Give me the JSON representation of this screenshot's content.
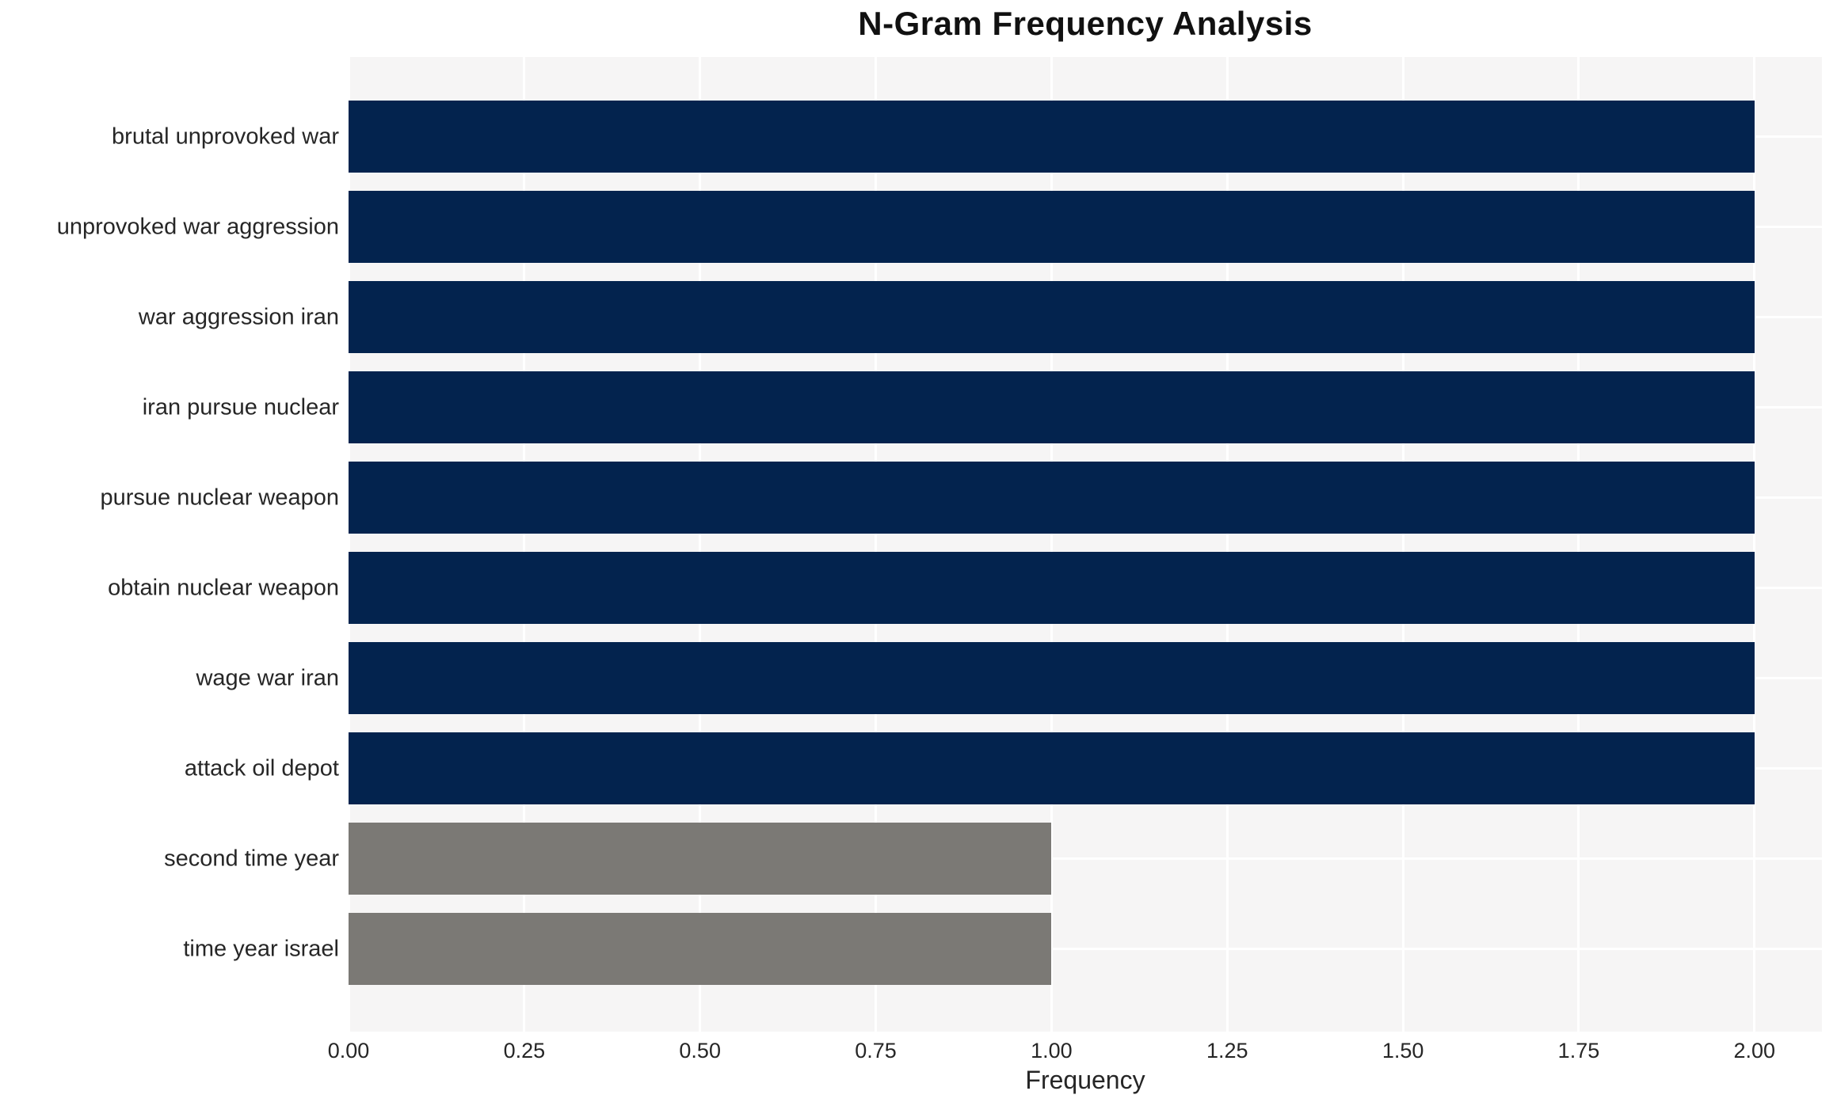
{
  "chart_data": {
    "type": "bar",
    "orientation": "horizontal",
    "title": "N-Gram Frequency Analysis",
    "xlabel": "Frequency",
    "ylabel": "",
    "categories": [
      "brutal unprovoked war",
      "unprovoked war aggression",
      "war aggression iran",
      "iran pursue nuclear",
      "pursue nuclear weapon",
      "obtain nuclear weapon",
      "wage war iran",
      "attack oil depot",
      "second time year",
      "time year israel"
    ],
    "values": [
      2,
      2,
      2,
      2,
      2,
      2,
      2,
      2,
      1,
      1
    ],
    "bar_colors": [
      "#03234e",
      "#03234e",
      "#03234e",
      "#03234e",
      "#03234e",
      "#03234e",
      "#03234e",
      "#03234e",
      "#7b7975",
      "#7b7975"
    ],
    "x_tick_values": [
      0,
      0.25,
      0.5,
      0.75,
      1.0,
      1.25,
      1.5,
      1.75,
      2.0
    ],
    "x_tick_labels": [
      "0.00",
      "0.25",
      "0.50",
      "0.75",
      "1.00",
      "1.25",
      "1.50",
      "1.75",
      "2.00"
    ],
    "xlim": [
      0,
      2.096
    ],
    "grid": true,
    "legend_position": "none",
    "colors": {
      "bar_primary": "#03234e",
      "bar_secondary": "#7b7975",
      "plot_background": "#f6f5f5",
      "gridline": "#ffffff",
      "tick_text": "#262626",
      "title_text": "#111111"
    }
  }
}
